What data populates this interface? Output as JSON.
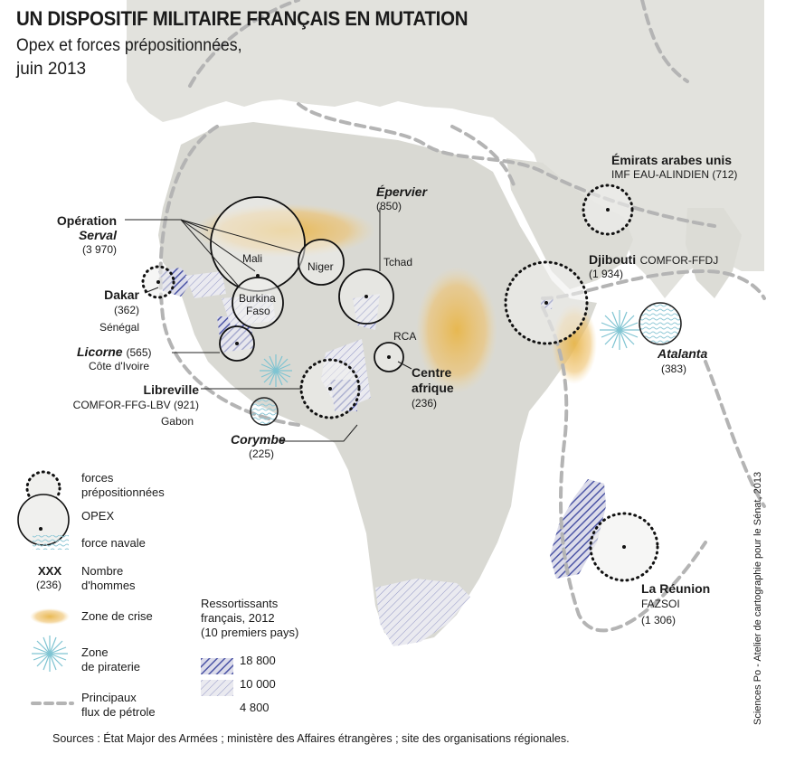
{
  "title": "UN DISPOSITIF MILITAIRE FRANÇAIS EN MUTATION",
  "subtitle": "Opex et forces prépositionnées,",
  "date": "juin 2013",
  "labels": {
    "serval": {
      "line1": "Opération",
      "line2": "Serval",
      "count": "(3 970)"
    },
    "mali": "Mali",
    "niger": "Niger",
    "burkina": {
      "line1": "Burkina",
      "line2": "Faso"
    },
    "tchad": "Tchad",
    "epervier": {
      "name": "Épervier",
      "count": "(850)"
    },
    "dakar": {
      "name": "Dakar",
      "count": "(362)",
      "country": "Sénégal"
    },
    "licorne": {
      "name": "Licorne",
      "count": "(565)",
      "country": "Côte d'Ivoire"
    },
    "libreville": {
      "name": "Libreville",
      "detail": "COMFOR-FFG-LBV (921)",
      "country": "Gabon"
    },
    "corymbe": {
      "name": "Corymbe",
      "count": "(225)"
    },
    "rca": "RCA",
    "centrafrique": {
      "line1": "Centre",
      "line2": "afrique",
      "count": "(236)"
    },
    "emirats": {
      "name": "Émirats arabes unis",
      "detail": "IMF EAU-ALINDIEN (712)"
    },
    "djibouti": {
      "name": "Djibouti",
      "suffix": "COMFOR-FFDJ",
      "count": "(1 934)"
    },
    "atalanta": {
      "name": "Atalanta",
      "count": "(383)"
    },
    "reunion": {
      "name": "La Réunion",
      "detail": "FAZSOI",
      "count": "(1 306)"
    }
  },
  "legend": {
    "forces": {
      "line1": "forces",
      "line2": "prépositionnées"
    },
    "opex": "OPEX",
    "navale": "force navale",
    "xxx": "XXX",
    "xxx_count": "(236)",
    "nombre": {
      "line1": "Nombre",
      "line2": "d'hommes"
    },
    "crise": "Zone de crise",
    "piraterie": {
      "line1": "Zone",
      "line2": "de piraterie"
    },
    "petrole": {
      "line1": "Principaux",
      "line2": "flux de pétrole"
    },
    "ressortissants": {
      "line1": "Ressortissants",
      "line2": "français, 2012",
      "line3": "(10 premiers pays)"
    },
    "r1": "18 800",
    "r2": "10 000",
    "r3": "4 800"
  },
  "colors": {
    "sea": "#ffffff",
    "land": "#e3e3df",
    "africa": "#d8d8d3",
    "crisis": "#e8b64a",
    "hatch": "#4c55a6",
    "dashed_route": "#b4b4b4",
    "piracy": "#7fc4d2"
  },
  "credit": "Sciences Po - Atelier de cartographie pour le Sénat, 2013",
  "sources": "Sources : État Major des Armées ; ministère des Affaires étrangères ; site des organisations régionales."
}
